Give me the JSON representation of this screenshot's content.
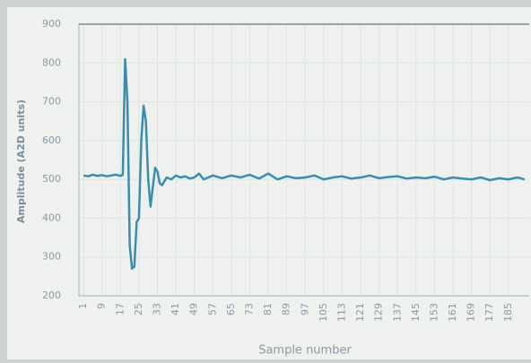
{
  "chart_data": {
    "type": "line",
    "y_label": "Amplitude (A2D units)",
    "x_label": "Sample number",
    "ylim": [
      200,
      900
    ],
    "yticks": [
      200,
      300,
      400,
      500,
      600,
      700,
      800,
      900
    ],
    "xlim": [
      -1,
      194
    ],
    "xticks": [
      1,
      9,
      17,
      25,
      33,
      41,
      49,
      57,
      65,
      73,
      81,
      89,
      97,
      105,
      113,
      121,
      129,
      137,
      145,
      153,
      161,
      169,
      177,
      185
    ],
    "grid": true,
    "series": [
      {
        "color": "#3b8db0",
        "x": [
          1,
          3,
          5,
          7,
          9,
          11,
          13,
          15,
          17,
          18,
          19,
          20,
          21,
          22,
          23,
          24,
          25,
          26,
          27,
          28,
          29,
          30,
          31,
          32,
          33,
          34,
          35,
          37,
          39,
          41,
          43,
          45,
          47,
          49,
          51,
          53,
          55,
          57,
          61,
          65,
          69,
          73,
          77,
          81,
          85,
          89,
          93,
          97,
          101,
          105,
          109,
          113,
          117,
          121,
          125,
          129,
          133,
          137,
          141,
          145,
          149,
          153,
          157,
          161,
          165,
          169,
          173,
          177,
          181,
          185,
          189,
          192
        ],
        "values": [
          510,
          508,
          512,
          509,
          511,
          508,
          510,
          512,
          509,
          512,
          810,
          700,
          330,
          270,
          275,
          390,
          400,
          600,
          690,
          650,
          500,
          430,
          480,
          530,
          520,
          490,
          485,
          505,
          500,
          510,
          505,
          508,
          502,
          505,
          515,
          500,
          505,
          510,
          503,
          510,
          505,
          512,
          502,
          515,
          500,
          508,
          503,
          505,
          510,
          500,
          505,
          508,
          502,
          505,
          510,
          503,
          506,
          508,
          502,
          505,
          503,
          507,
          500,
          505,
          502,
          500,
          505,
          498,
          503,
          500,
          505,
          500
        ]
      }
    ]
  }
}
